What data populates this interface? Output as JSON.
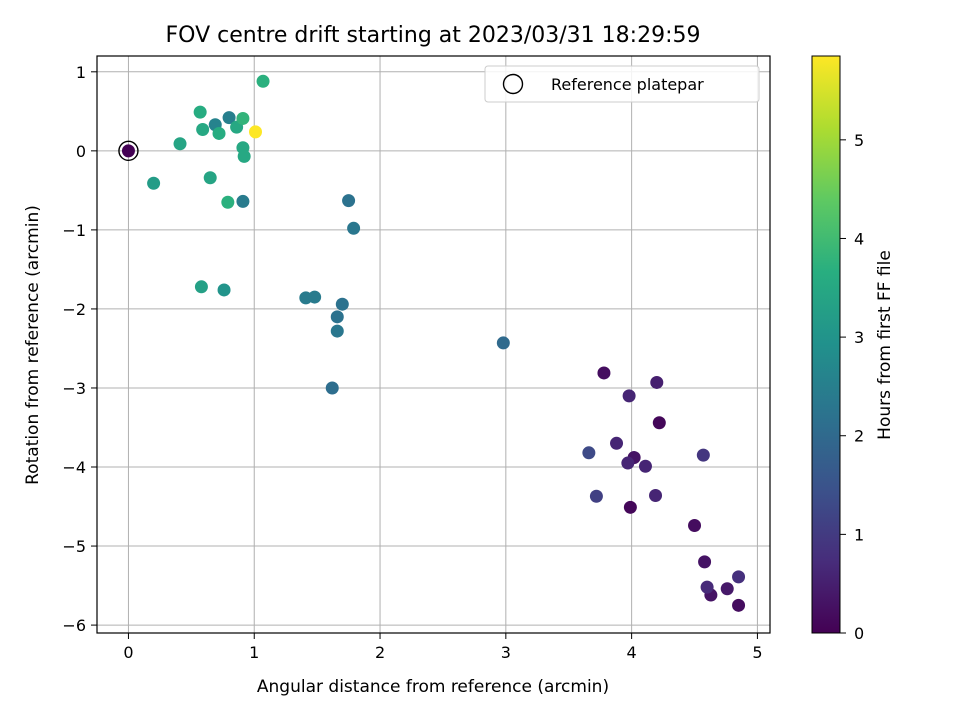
{
  "chart_data": {
    "type": "scatter",
    "title": "FOV centre drift starting at 2023/03/31 18:29:59",
    "xlabel": "Angular distance from reference (arcmin)",
    "ylabel": "Rotation from reference (arcmin)",
    "xlim": [
      -0.25,
      5.1
    ],
    "ylim": [
      -6.1,
      1.2
    ],
    "xticks": [
      0,
      1,
      2,
      3,
      4,
      5
    ],
    "xtick_labels": [
      "0",
      "1",
      "2",
      "3",
      "4",
      "5"
    ],
    "yticks": [
      1,
      0,
      -1,
      -2,
      -3,
      -4,
      -5,
      -6
    ],
    "ytick_labels": [
      "1",
      "0",
      "−1",
      "−2",
      "−3",
      "−4",
      "−5",
      "−6"
    ],
    "grid": true,
    "legend": {
      "placement": "top-right",
      "entries": [
        "Reference platepar"
      ]
    },
    "colorbar": {
      "label": "Hours from first FF file",
      "range": [
        0,
        5.85
      ],
      "ticks": [
        0,
        1,
        2,
        3,
        4,
        5
      ],
      "tick_labels": [
        "0",
        "1",
        "2",
        "3",
        "4",
        "5"
      ],
      "colormap": "viridis"
    },
    "reference_point": {
      "x": 0,
      "y": 0
    },
    "points": [
      {
        "x": 0.0,
        "y": 0.0,
        "c": 0.0
      },
      {
        "x": 3.78,
        "y": -2.81,
        "c": 0.2
      },
      {
        "x": 4.22,
        "y": -3.44,
        "c": 0.1
      },
      {
        "x": 3.99,
        "y": -4.51,
        "c": 0.1
      },
      {
        "x": 4.5,
        "y": -4.74,
        "c": 0.2
      },
      {
        "x": 4.58,
        "y": -5.2,
        "c": 0.3
      },
      {
        "x": 4.85,
        "y": -5.75,
        "c": 0.2
      },
      {
        "x": 4.63,
        "y": -5.62,
        "c": 0.3
      },
      {
        "x": 4.76,
        "y": -5.54,
        "c": 0.4
      },
      {
        "x": 4.02,
        "y": -3.88,
        "c": 0.3
      },
      {
        "x": 4.2,
        "y": -2.93,
        "c": 0.5
      },
      {
        "x": 3.98,
        "y": -3.1,
        "c": 0.6
      },
      {
        "x": 3.88,
        "y": -3.7,
        "c": 0.6
      },
      {
        "x": 3.97,
        "y": -3.95,
        "c": 0.6
      },
      {
        "x": 4.11,
        "y": -3.99,
        "c": 0.6
      },
      {
        "x": 4.19,
        "y": -4.36,
        "c": 0.6
      },
      {
        "x": 4.6,
        "y": -5.52,
        "c": 0.7
      },
      {
        "x": 4.85,
        "y": -5.39,
        "c": 0.8
      },
      {
        "x": 4.57,
        "y": -3.85,
        "c": 0.9
      },
      {
        "x": 3.72,
        "y": -4.37,
        "c": 1.1
      },
      {
        "x": 3.66,
        "y": -3.82,
        "c": 1.3
      },
      {
        "x": 2.98,
        "y": -2.43,
        "c": 2.0
      },
      {
        "x": 1.62,
        "y": -3.0,
        "c": 2.1
      },
      {
        "x": 1.66,
        "y": -2.1,
        "c": 2.2
      },
      {
        "x": 1.66,
        "y": -2.28,
        "c": 2.3
      },
      {
        "x": 1.7,
        "y": -1.94,
        "c": 2.2
      },
      {
        "x": 1.75,
        "y": -0.63,
        "c": 2.2
      },
      {
        "x": 1.79,
        "y": -0.98,
        "c": 2.3
      },
      {
        "x": 1.41,
        "y": -1.86,
        "c": 2.4
      },
      {
        "x": 1.48,
        "y": -1.85,
        "c": 2.4
      },
      {
        "x": 0.91,
        "y": -0.64,
        "c": 2.4
      },
      {
        "x": 0.8,
        "y": 0.42,
        "c": 2.5
      },
      {
        "x": 0.69,
        "y": 0.33,
        "c": 2.6
      },
      {
        "x": 0.76,
        "y": -1.76,
        "c": 3.0
      },
      {
        "x": 0.2,
        "y": -0.41,
        "c": 3.2
      },
      {
        "x": 0.58,
        "y": -1.72,
        "c": 3.3
      },
      {
        "x": 0.65,
        "y": -0.34,
        "c": 3.4
      },
      {
        "x": 0.41,
        "y": 0.09,
        "c": 3.4
      },
      {
        "x": 0.86,
        "y": 0.3,
        "c": 3.5
      },
      {
        "x": 0.91,
        "y": 0.04,
        "c": 3.5
      },
      {
        "x": 0.92,
        "y": -0.07,
        "c": 3.5
      },
      {
        "x": 0.59,
        "y": 0.27,
        "c": 3.5
      },
      {
        "x": 0.72,
        "y": 0.22,
        "c": 3.6
      },
      {
        "x": 0.79,
        "y": -0.65,
        "c": 3.7
      },
      {
        "x": 0.57,
        "y": 0.49,
        "c": 3.6
      },
      {
        "x": 0.91,
        "y": 0.41,
        "c": 3.8
      },
      {
        "x": 1.07,
        "y": 0.88,
        "c": 3.7
      },
      {
        "x": 1.01,
        "y": 0.24,
        "c": 5.85
      }
    ]
  }
}
